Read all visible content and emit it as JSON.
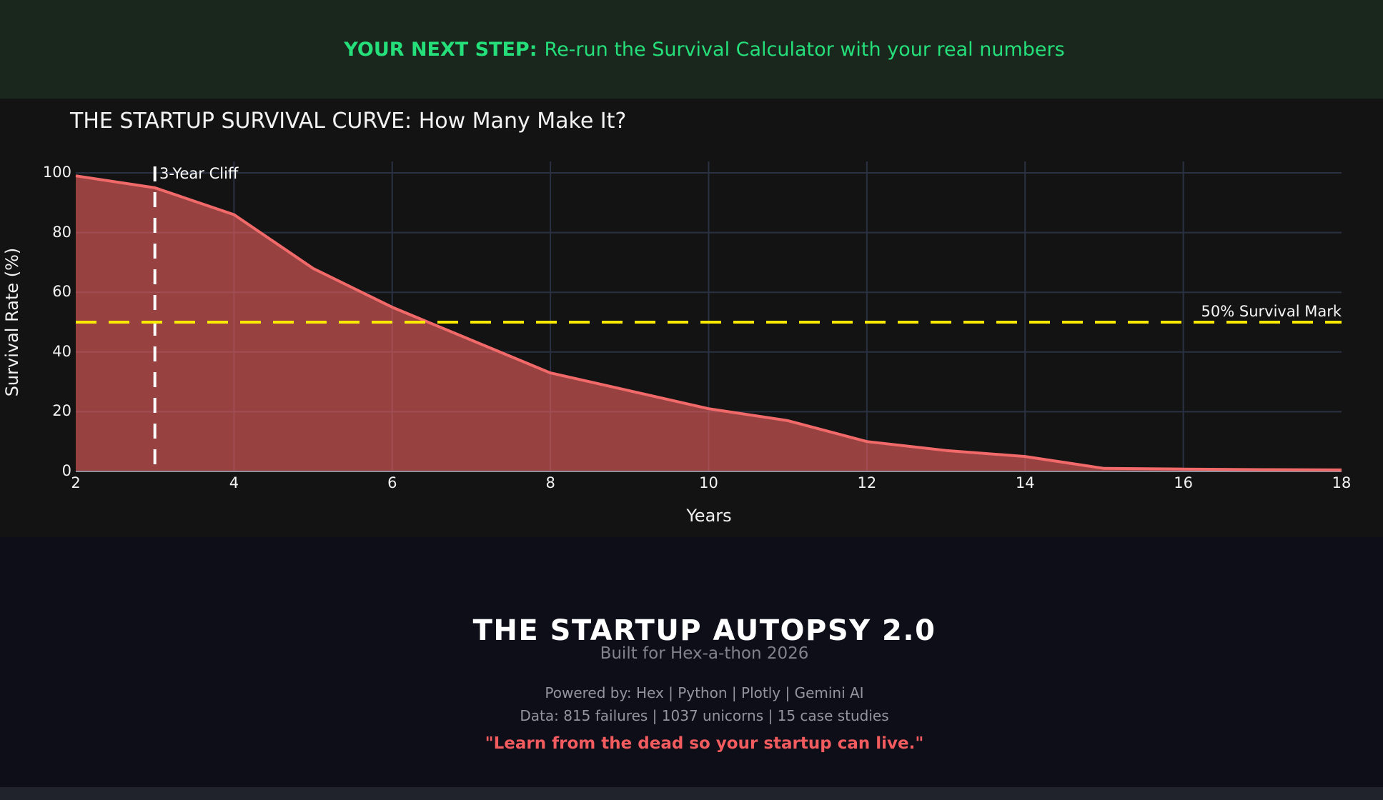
{
  "banner": {
    "highlight": "YOUR NEXT STEP:",
    "text": "Re-run the Survival Calculator with your real numbers"
  },
  "chart_data": {
    "type": "area",
    "title": "THE STARTUP SURVIVAL CURVE: How Many Make It?",
    "xlabel": "Years",
    "ylabel": "Survival Rate (%)",
    "x": [
      2,
      3,
      4,
      5,
      6,
      7,
      8,
      9,
      10,
      11,
      12,
      13,
      14,
      15,
      16,
      17,
      18
    ],
    "series": [
      {
        "name": "Survival Rate",
        "values": [
          99,
          95,
          86,
          68,
          55,
          44,
          33,
          27,
          21,
          17,
          10,
          7,
          5,
          1,
          0.8,
          0.6,
          0.5
        ]
      }
    ],
    "xlim": [
      2,
      18
    ],
    "ylim": [
      0,
      100
    ],
    "xticks": [
      2,
      4,
      6,
      8,
      10,
      12,
      14,
      16,
      18
    ],
    "yticks": [
      0,
      20,
      40,
      60,
      80,
      100
    ],
    "grid": true,
    "legend": false,
    "annotations": [
      {
        "type": "vline",
        "x": 3,
        "label": "3-Year Cliff",
        "style": "dashed",
        "color": "#ffffff"
      },
      {
        "type": "hline",
        "y": 50,
        "label": "50% Survival Mark",
        "style": "dashed",
        "color": "#fae900"
      }
    ],
    "colors": {
      "line": "#f16969",
      "fill": "rgba(240,96,96,0.6)",
      "grid": "#2a3142",
      "zeroline": "#8f8f9c",
      "background": "#131313",
      "vline": "#ffffff",
      "hline": "#fae900"
    }
  },
  "footer": {
    "title": "THE STARTUP AUTOPSY 2.0",
    "subtitle": "Built for Hex-a-thon 2026",
    "powered_by": "Powered by: Hex | Python | Plotly | Gemini AI",
    "data_stats": "Data: 815 failures | 1037 unicorns | 15 case studies",
    "quote": "\"Learn from the dead so your startup can live.\""
  }
}
